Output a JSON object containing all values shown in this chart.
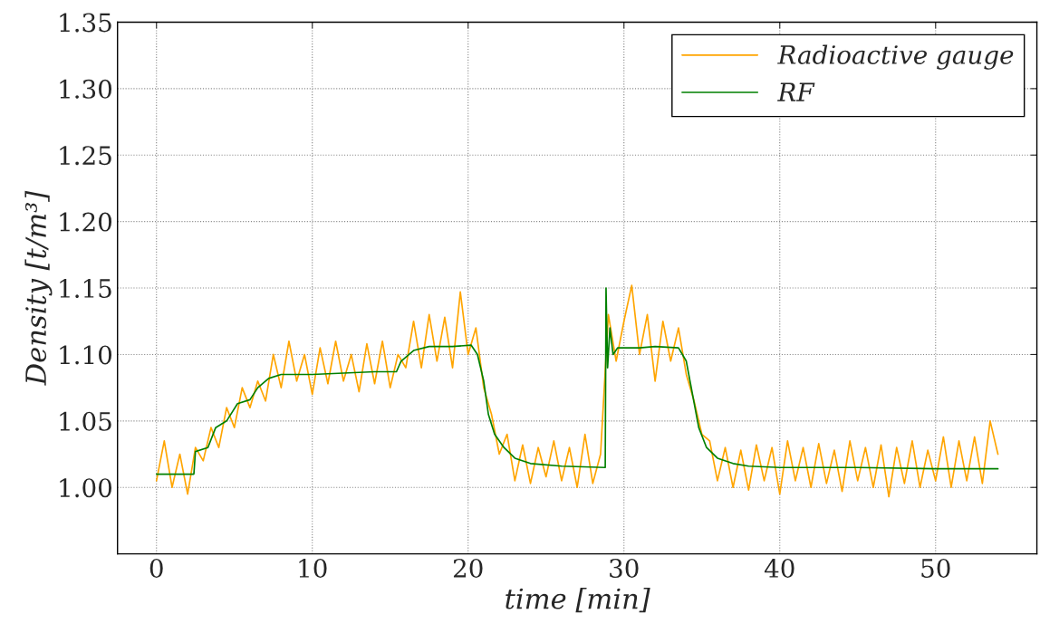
{
  "chart_data": {
    "type": "line",
    "xlabel": "time [min]",
    "ylabel": "Density [t/m³]",
    "xlim": [
      -2.5,
      56.5
    ],
    "ylim": [
      0.95,
      1.35
    ],
    "xticks": [
      0,
      10,
      20,
      30,
      40,
      50
    ],
    "yticks": [
      {
        "value": 1.0,
        "label": "1.00"
      },
      {
        "value": 1.05,
        "label": "1.05"
      },
      {
        "value": 1.1,
        "label": "1.10"
      },
      {
        "value": 1.15,
        "label": "1.15"
      },
      {
        "value": 1.2,
        "label": "1.20"
      },
      {
        "value": 1.25,
        "label": "1.25"
      },
      {
        "value": 1.3,
        "label": "1.30"
      },
      {
        "value": 1.35,
        "label": "1.35"
      }
    ],
    "grid": true,
    "legend": "top right",
    "line_style": "solid",
    "marker": "none",
    "series": [
      {
        "name": "Radioactive gauge",
        "color": "#ffa500",
        "x": [
          0,
          0.5,
          1,
          1.5,
          2,
          2.5,
          3,
          3.5,
          4,
          4.5,
          5,
          5.5,
          6,
          6.5,
          7,
          7.5,
          8,
          8.5,
          9,
          9.5,
          10,
          10.5,
          11,
          11.5,
          12,
          12.5,
          13,
          13.5,
          14,
          14.5,
          15,
          15.5,
          16,
          16.5,
          17,
          17.5,
          18,
          18.5,
          19,
          19.5,
          20,
          20.5,
          21,
          21.5,
          22,
          22.5,
          23,
          23.5,
          24,
          24.5,
          25,
          25.5,
          26,
          26.5,
          27,
          27.5,
          28,
          28.5,
          29,
          29.5,
          30,
          30.5,
          31,
          31.5,
          32,
          32.5,
          33,
          33.5,
          34,
          34.5,
          35,
          35.5,
          36,
          36.5,
          37,
          37.5,
          38,
          38.5,
          39,
          39.5,
          40,
          40.5,
          41,
          41.5,
          42,
          42.5,
          43,
          43.5,
          44,
          44.5,
          45,
          45.5,
          46,
          46.5,
          47,
          47.5,
          48,
          48.5,
          49,
          49.5,
          50,
          50.5,
          51,
          51.5,
          52,
          52.5,
          53,
          53.5,
          54
        ],
        "values": [
          1.005,
          1.035,
          1.0,
          1.025,
          0.995,
          1.03,
          1.02,
          1.045,
          1.03,
          1.06,
          1.045,
          1.075,
          1.06,
          1.08,
          1.065,
          1.1,
          1.075,
          1.11,
          1.08,
          1.1,
          1.07,
          1.105,
          1.078,
          1.11,
          1.08,
          1.1,
          1.072,
          1.108,
          1.078,
          1.11,
          1.075,
          1.1,
          1.09,
          1.125,
          1.09,
          1.13,
          1.095,
          1.128,
          1.09,
          1.147,
          1.1,
          1.12,
          1.075,
          1.055,
          1.025,
          1.04,
          1.005,
          1.032,
          1.003,
          1.03,
          1.008,
          1.035,
          1.005,
          1.03,
          1.0,
          1.04,
          1.003,
          1.025,
          1.13,
          1.095,
          1.125,
          1.152,
          1.1,
          1.13,
          1.08,
          1.125,
          1.095,
          1.12,
          1.085,
          1.065,
          1.04,
          1.035,
          1.005,
          1.03,
          1.0,
          1.028,
          0.998,
          1.032,
          1.005,
          1.03,
          0.995,
          1.035,
          1.005,
          1.03,
          1.0,
          1.033,
          1.003,
          1.028,
          0.997,
          1.035,
          1.005,
          1.03,
          1.0,
          1.032,
          0.993,
          1.03,
          1.003,
          1.035,
          1.0,
          1.028,
          1.005,
          1.038,
          1.0,
          1.035,
          1.005,
          1.038,
          1.003,
          1.05,
          1.025
        ]
      },
      {
        "name": "RF",
        "color": "#008000",
        "x": [
          0,
          2.4,
          2.5,
          3.3,
          3.8,
          4.5,
          5.2,
          6,
          6.5,
          7.2,
          8,
          10,
          12,
          14,
          15.4,
          15.7,
          16.5,
          17.5,
          19,
          20.2,
          20.6,
          21,
          21.3,
          21.7,
          22.3,
          23,
          24,
          26,
          28.8,
          28.85,
          28.95,
          29.1,
          29.3,
          29.6,
          31,
          32,
          33.5,
          34,
          34.4,
          34.8,
          35.3,
          36,
          37,
          38,
          40,
          45,
          50,
          54
        ],
        "values": [
          1.01,
          1.01,
          1.027,
          1.03,
          1.045,
          1.05,
          1.063,
          1.066,
          1.075,
          1.082,
          1.085,
          1.085,
          1.086,
          1.087,
          1.087,
          1.095,
          1.103,
          1.106,
          1.106,
          1.107,
          1.1,
          1.08,
          1.055,
          1.04,
          1.03,
          1.022,
          1.018,
          1.016,
          1.015,
          1.15,
          1.09,
          1.12,
          1.1,
          1.105,
          1.105,
          1.106,
          1.105,
          1.095,
          1.07,
          1.045,
          1.03,
          1.022,
          1.018,
          1.016,
          1.015,
          1.015,
          1.014,
          1.014
        ]
      }
    ]
  }
}
